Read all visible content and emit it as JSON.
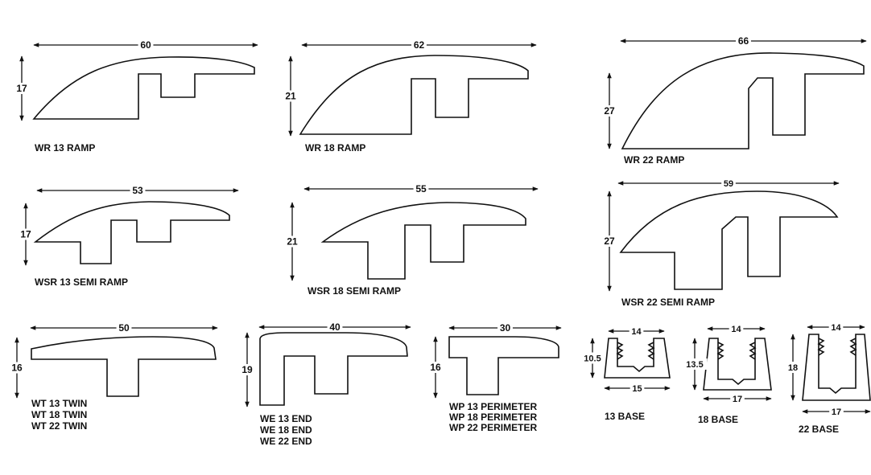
{
  "profiles": [
    {
      "id": "wr13",
      "name": [
        "WR 13 RAMP"
      ],
      "width": "60",
      "height": "17"
    },
    {
      "id": "wr18",
      "name": [
        "WR 18 RAMP"
      ],
      "width": "62",
      "height": "21"
    },
    {
      "id": "wr22",
      "name": [
        "WR 22 RAMP"
      ],
      "width": "66",
      "height": "27"
    },
    {
      "id": "wsr13",
      "name": [
        "WSR 13 SEMI RAMP"
      ],
      "width": "53",
      "height": "17"
    },
    {
      "id": "wsr18",
      "name": [
        "WSR 18 SEMI RAMP"
      ],
      "width": "55",
      "height": "21"
    },
    {
      "id": "wsr22",
      "name": [
        "WSR 22 SEMI RAMP"
      ],
      "width": "59",
      "height": "27"
    },
    {
      "id": "wt",
      "name": [
        "WT 13 TWIN",
        "WT 18 TWIN",
        "WT 22 TWIN"
      ],
      "width": "50",
      "height": "16"
    },
    {
      "id": "we",
      "name": [
        "WE 13 END",
        "WE 18 END",
        "WE 22 END"
      ],
      "width": "40",
      "height": "19"
    },
    {
      "id": "wp",
      "name": [
        "WP 13 PERIMETER",
        "WP 18 PERIMETER",
        "WP 22 PERIMETER"
      ],
      "width": "30",
      "height": "16"
    }
  ],
  "bases": [
    {
      "id": "b13",
      "name": "13 BASE",
      "top_width": "14",
      "bottom_width": "15",
      "height": "10.5"
    },
    {
      "id": "b18",
      "name": "18 BASE",
      "top_width": "14",
      "bottom_width": "17",
      "height": "13.5"
    },
    {
      "id": "b22",
      "name": "22 BASE",
      "top_width": "14",
      "bottom_width": "17",
      "height": "18"
    }
  ]
}
